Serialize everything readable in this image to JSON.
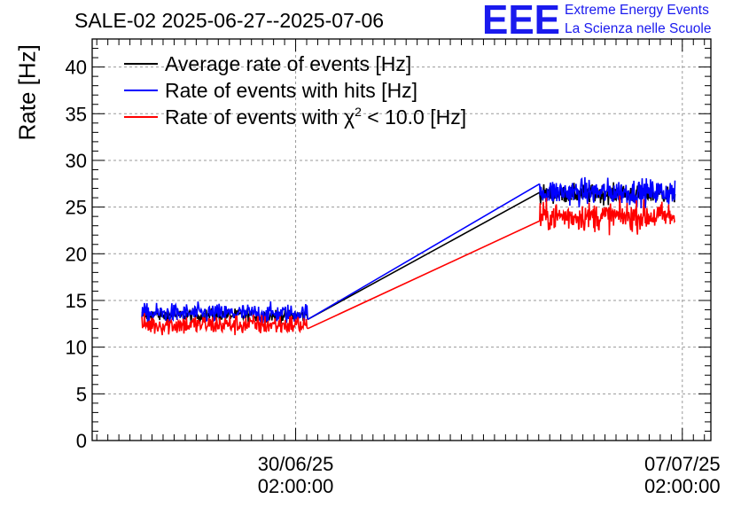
{
  "logo": {
    "text": "EEE",
    "line1": "Extreme Energy Events",
    "line2": "La Scienza nelle Scuole"
  },
  "chart_data": {
    "type": "line",
    "title": "SALE-02 2025-06-27--2025-07-06",
    "xlabel": "",
    "ylabel": "Rate [Hz]",
    "ylim": [
      0,
      43
    ],
    "y_ticks": [
      0,
      5,
      10,
      15,
      20,
      25,
      30,
      35,
      40
    ],
    "x_unit": "days since 2025-06-27 00:00",
    "xlim": [
      -0.6,
      10.6
    ],
    "x_ticks": [
      {
        "x": 3.0833,
        "label_date": "30/06/25",
        "label_time": "02:00:00"
      },
      {
        "x": 10.0833,
        "label_date": "07/07/25",
        "label_time": "02:00:00"
      }
    ],
    "grid": true,
    "legend_position": "top-left",
    "series": [
      {
        "name": "Average rate of events [Hz]",
        "color": "#000000",
        "segments": [
          {
            "x_start": 0.3,
            "x_end": 3.3,
            "mean": 13.4,
            "noise": 0.5
          },
          {
            "x_start": 7.5,
            "x_end": 9.95,
            "mean": 26.4,
            "noise": 0.7
          }
        ]
      },
      {
        "name": "Rate of events with hits [Hz]",
        "color": "#0000ff",
        "segments": [
          {
            "x_start": 0.3,
            "x_end": 3.3,
            "mean": 13.6,
            "noise": 0.75
          },
          {
            "x_start": 7.5,
            "x_end": 9.95,
            "mean": 26.6,
            "noise": 1.0
          }
        ]
      },
      {
        "name": "Rate of events with χ² < 10.0 [Hz]",
        "color": "#ff0000",
        "legend_prefix": "Rate of events with ",
        "legend_chi": "χ",
        "legend_sup": "2",
        "legend_suffix": " < 10.0 [Hz]",
        "segments": [
          {
            "x_start": 0.3,
            "x_end": 3.3,
            "mean": 12.4,
            "noise": 0.8
          },
          {
            "x_start": 7.5,
            "x_end": 9.95,
            "mean": 24.0,
            "noise": 1.1
          }
        ]
      }
    ]
  }
}
